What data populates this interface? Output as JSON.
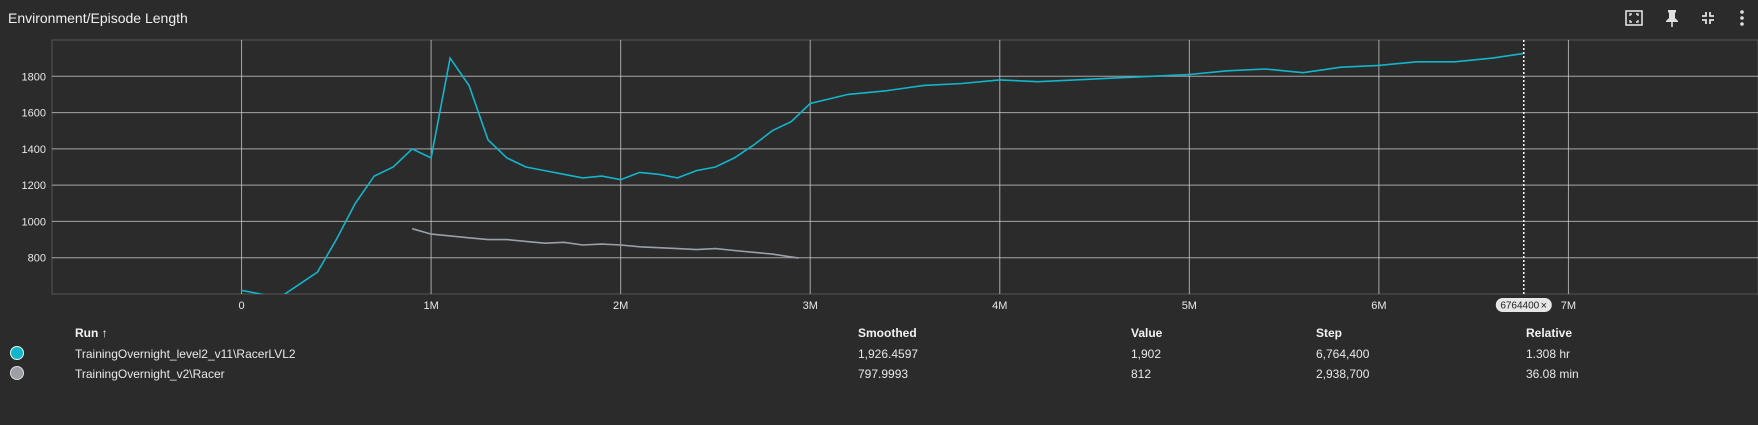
{
  "title": "Environment/Episode Length",
  "header_icons": [
    "fit-domain-icon",
    "pin-icon",
    "collapse-icon",
    "more-vert-icon"
  ],
  "colors": {
    "series_primary": "#12b5cb",
    "series_secondary": "#9aa0a6",
    "raw_primary": "#254b52",
    "raw_secondary": "#3a3d41",
    "grid": "#d0d0d0",
    "background": "#2b2b2b"
  },
  "chart_data": {
    "type": "line",
    "title": "Environment/Episode Length",
    "xlabel": "",
    "ylabel": "",
    "xlim": [
      -1000000,
      8000000
    ],
    "ylim": [
      600,
      2000
    ],
    "x_ticks": [
      0,
      1000000,
      2000000,
      3000000,
      4000000,
      5000000,
      6000000,
      7000000
    ],
    "x_tick_labels": [
      "0",
      "1M",
      "2M",
      "3M",
      "4M",
      "5M",
      "6M",
      "7M"
    ],
    "y_ticks": [
      800,
      1000,
      1200,
      1400,
      1600,
      1800
    ],
    "y_tick_labels": [
      "800",
      "1000",
      "1200",
      "1400",
      "1600",
      "1800"
    ],
    "grid": true,
    "hover_step": 6764400,
    "hover_label": "6764400",
    "series": [
      {
        "name": "TrainingOvernight_level2_v11\\RacerLVL2",
        "x": [
          0,
          100000,
          200000,
          300000,
          400000,
          500000,
          600000,
          700000,
          800000,
          900000,
          1000000,
          1100000,
          1200000,
          1300000,
          1400000,
          1500000,
          1600000,
          1700000,
          1800000,
          1900000,
          2000000,
          2100000,
          2200000,
          2300000,
          2400000,
          2500000,
          2600000,
          2700000,
          2800000,
          2900000,
          3000000,
          3200000,
          3400000,
          3600000,
          3800000,
          4000000,
          4200000,
          4400000,
          4600000,
          4800000,
          5000000,
          5200000,
          5400000,
          5600000,
          5800000,
          6000000,
          6200000,
          6400000,
          6600000,
          6764400
        ],
        "values": [
          620,
          600,
          580,
          650,
          720,
          900,
          1100,
          1250,
          1300,
          1400,
          1350,
          1900,
          1750,
          1450,
          1350,
          1300,
          1280,
          1260,
          1240,
          1250,
          1230,
          1270,
          1260,
          1240,
          1280,
          1300,
          1350,
          1420,
          1500,
          1550,
          1650,
          1700,
          1720,
          1750,
          1760,
          1780,
          1770,
          1780,
          1790,
          1800,
          1810,
          1830,
          1840,
          1820,
          1850,
          1860,
          1880,
          1880,
          1900,
          1926
        ]
      },
      {
        "name": "TrainingOvernight_v2\\Racer",
        "x": [
          900000,
          1000000,
          1100000,
          1200000,
          1300000,
          1400000,
          1500000,
          1600000,
          1700000,
          1800000,
          1900000,
          2000000,
          2100000,
          2200000,
          2300000,
          2400000,
          2500000,
          2600000,
          2700000,
          2800000,
          2938700
        ],
        "values": [
          960,
          930,
          920,
          910,
          900,
          900,
          890,
          880,
          885,
          870,
          875,
          870,
          860,
          855,
          850,
          845,
          850,
          840,
          830,
          820,
          798
        ]
      }
    ]
  },
  "table": {
    "headers": {
      "run": "Run",
      "sort_arrow": "↑",
      "smoothed": "Smoothed",
      "value": "Value",
      "step": "Step",
      "relative": "Relative"
    },
    "rows": [
      {
        "run": "TrainingOvernight_level2_v11\\RacerLVL2",
        "smoothed": "1,926.4597",
        "value": "1,902",
        "step": "6,764,400",
        "relative": "1.308 hr",
        "color": "#12b5cb"
      },
      {
        "run": "TrainingOvernight_v2\\Racer",
        "smoothed": "797.9993",
        "value": "812",
        "step": "2,938,700",
        "relative": "36.08 min",
        "color": "#9aa0a6"
      }
    ]
  }
}
